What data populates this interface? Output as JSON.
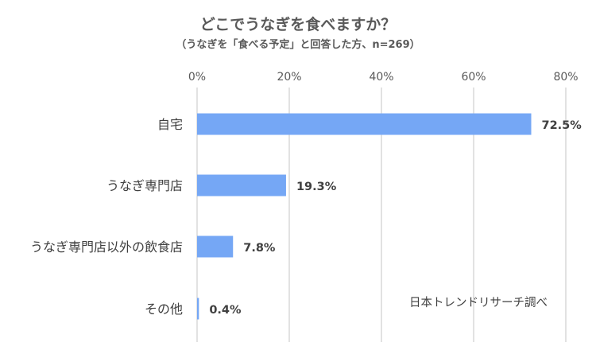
{
  "chart_data": {
    "type": "bar",
    "orientation": "horizontal",
    "title": "どこでうなぎを食べますか？",
    "subtitle": "（うなぎを「食べる予定」と回答した方、n=269）",
    "categories": [
      "自宅",
      "うなぎ専門店",
      "うなぎ専門店以外の飲食店",
      "その他"
    ],
    "values": [
      72.5,
      19.3,
      7.8,
      0.4
    ],
    "value_labels": [
      "72.5%",
      "19.3%",
      "7.8%",
      "0.4%"
    ],
    "xticks": [
      0,
      20,
      40,
      60,
      80
    ],
    "xtick_labels": [
      "0%",
      "20%",
      "40%",
      "60%",
      "80%"
    ],
    "xlim": [
      0,
      80
    ],
    "xlabel": "",
    "ylabel": "",
    "grid": true,
    "axis_position": "top",
    "bar_color": "#75a7f5",
    "gridline_color": "#d9d9d9"
  },
  "annotation": {
    "credit": "日本トレンドリサーチ調べ"
  }
}
